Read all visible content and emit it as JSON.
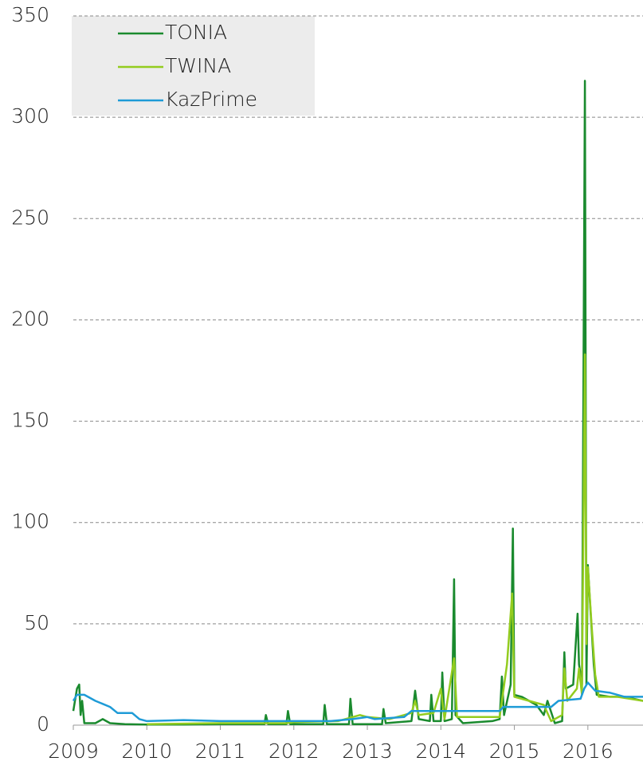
{
  "chart_data": {
    "type": "line",
    "xlim": [
      2009,
      2016.75
    ],
    "xticks": [
      2009,
      2010,
      2011,
      2012,
      2013,
      2014,
      2015,
      2016
    ],
    "ylim": [
      0,
      350
    ],
    "yticks": [
      0,
      50,
      100,
      150,
      200,
      250,
      300,
      350
    ],
    "grid": true,
    "legend": "upper left",
    "series": [
      {
        "name": "TONIA",
        "color": "#1a8a2e",
        "x": [
          2009.0,
          2009.05,
          2009.08,
          2009.1,
          2009.12,
          2009.15,
          2009.3,
          2009.4,
          2009.5,
          2009.7,
          2010.0,
          2010.5,
          2011.0,
          2011.6,
          2011.62,
          2011.65,
          2011.9,
          2011.92,
          2011.95,
          2012.4,
          2012.42,
          2012.45,
          2012.75,
          2012.77,
          2012.8,
          2013.2,
          2013.22,
          2013.25,
          2013.6,
          2013.65,
          2013.7,
          2013.85,
          2013.87,
          2013.9,
          2014.0,
          2014.02,
          2014.05,
          2014.15,
          2014.18,
          2014.2,
          2014.3,
          2014.7,
          2014.8,
          2014.83,
          2014.86,
          2014.95,
          2014.98,
          2015.0,
          2015.1,
          2015.3,
          2015.4,
          2015.45,
          2015.55,
          2015.65,
          2015.68,
          2015.7,
          2015.8,
          2015.86,
          2015.88,
          2015.92,
          2015.96,
          2015.98,
          2016.0,
          2016.03,
          2016.08,
          2016.12,
          2016.3,
          2016.5,
          2016.75
        ],
        "values": [
          7,
          18,
          20,
          5,
          12,
          1,
          1,
          3,
          1,
          0.5,
          0.3,
          0.3,
          0.5,
          0.5,
          5,
          0.5,
          0.5,
          7,
          0.5,
          0.5,
          10,
          0.5,
          0.5,
          13,
          0.5,
          0.5,
          8,
          1,
          2,
          17,
          3,
          2,
          15,
          2,
          2,
          26,
          2,
          3,
          72,
          5,
          1,
          2,
          3,
          24,
          5,
          20,
          97,
          15,
          14,
          10,
          5,
          12,
          1,
          2,
          36,
          18,
          20,
          55,
          30,
          20,
          318,
          20,
          79,
          60,
          30,
          15,
          14,
          14,
          12
        ]
      },
      {
        "name": "TWINA",
        "color": "#93cc1f",
        "x": [
          2010.0,
          2011.0,
          2011.9,
          2012.0,
          2012.6,
          2012.9,
          2013.0,
          2013.3,
          2013.6,
          2013.65,
          2013.7,
          2013.9,
          2014.0,
          2014.05,
          2014.18,
          2014.22,
          2014.5,
          2014.8,
          2014.9,
          2014.97,
          2015.0,
          2015.2,
          2015.4,
          2015.5,
          2015.65,
          2015.68,
          2015.72,
          2015.85,
          2015.88,
          2015.92,
          2015.96,
          2015.98,
          2016.0,
          2016.05,
          2016.1,
          2016.15,
          2016.4,
          2016.75
        ],
        "values": [
          0.5,
          1,
          1,
          1.5,
          2,
          5,
          4,
          3,
          6,
          12,
          5,
          6,
          18,
          3,
          33,
          4,
          4,
          4,
          30,
          65,
          14,
          12,
          10,
          2,
          5,
          28,
          12,
          18,
          28,
          15,
          183,
          40,
          78,
          50,
          25,
          14,
          14,
          12
        ]
      },
      {
        "name": "KazPrime",
        "color": "#1e9bd7",
        "x": [
          2009.0,
          2009.05,
          2009.15,
          2009.3,
          2009.5,
          2009.6,
          2009.8,
          2009.9,
          2010.0,
          2010.5,
          2011.0,
          2012.0,
          2012.5,
          2012.8,
          2013.0,
          2013.1,
          2013.5,
          2013.6,
          2014.0,
          2014.8,
          2014.85,
          2015.5,
          2015.6,
          2015.9,
          2015.95,
          2016.0,
          2016.1,
          2016.3,
          2016.5,
          2016.75
        ],
        "values": [
          12,
          15,
          15,
          12,
          9,
          6,
          6,
          3,
          2,
          2.5,
          2,
          2,
          2,
          3,
          4,
          3,
          4,
          7,
          7,
          7,
          9,
          9,
          12,
          13,
          18,
          21,
          17,
          16,
          14,
          14
        ]
      }
    ]
  }
}
